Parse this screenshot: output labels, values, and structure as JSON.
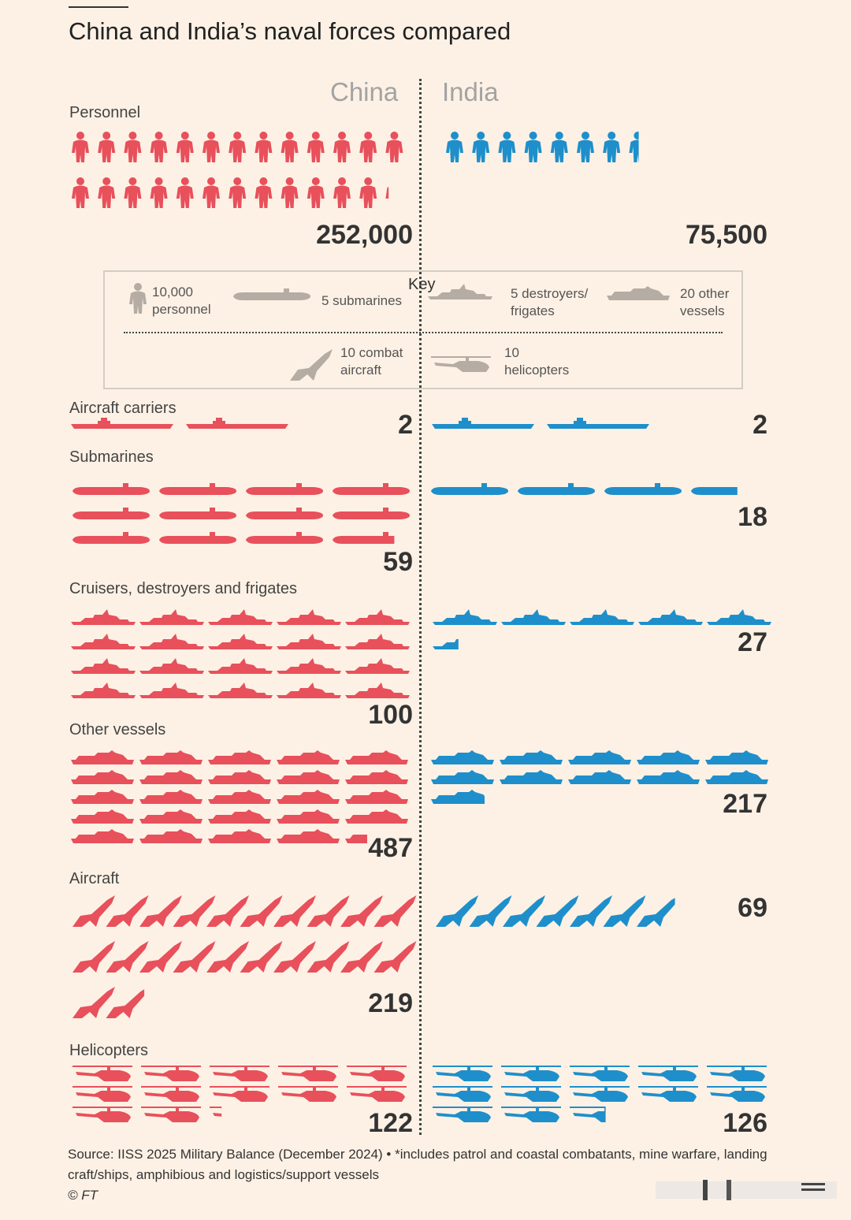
{
  "title": "China and India’s naval forces compared",
  "countries": {
    "china": "China",
    "india": "India"
  },
  "colors": {
    "china": "#e8505b",
    "india": "#1e8fcb",
    "key": "#b5aca3"
  },
  "key": {
    "title": "Key",
    "personnel": "10,000 personnel",
    "submarines": "5 submarines",
    "destroyers": "5 destroyers/ frigates",
    "other": "20 other vessels",
    "aircraft": "10 combat aircraft",
    "helicopters": "10 helicopters"
  },
  "chart_data": {
    "type": "pictogram",
    "categories": [
      {
        "id": "personnel",
        "label": "Personnel",
        "china": "252,000",
        "india": "75,500",
        "china_icons": 25.2,
        "india_icons": 7.55,
        "unit": "10,000 personnel"
      },
      {
        "id": "carriers",
        "label": "Aircraft carriers",
        "china": "2",
        "india": "2",
        "china_icons": 2,
        "india_icons": 2,
        "unit": "1 carrier"
      },
      {
        "id": "submarines",
        "label": "Submarines",
        "china": "59",
        "india": "18",
        "china_icons": 11.8,
        "india_icons": 3.6,
        "unit": "5 submarines"
      },
      {
        "id": "destroyers",
        "label": "Cruisers, destroyers and frigates",
        "china": "100",
        "india": "27",
        "china_icons": 20,
        "india_icons": 5.4,
        "unit": "5 destroyers/frigates"
      },
      {
        "id": "other",
        "label": "Other vessels",
        "china": "487",
        "india": "217",
        "china_icons": 24.35,
        "india_icons": 10.85,
        "unit": "20 other vessels"
      },
      {
        "id": "aircraft",
        "label": "Aircraft",
        "china": "219",
        "india": "69",
        "china_icons": 21.9,
        "india_icons": 6.9,
        "unit": "10 combat aircraft"
      },
      {
        "id": "helicopters",
        "label": "Helicopters",
        "china": "122",
        "india": "126",
        "china_icons": 12.2,
        "india_icons": 12.6,
        "unit": "10 helicopters"
      }
    ]
  },
  "source": "Source: IISS 2025 Military Balance (December 2024) • *includes patrol and coastal combatants, mine warfare, landing craft/ships, amphibious and logistics/support vessels",
  "credit": "© FT"
}
